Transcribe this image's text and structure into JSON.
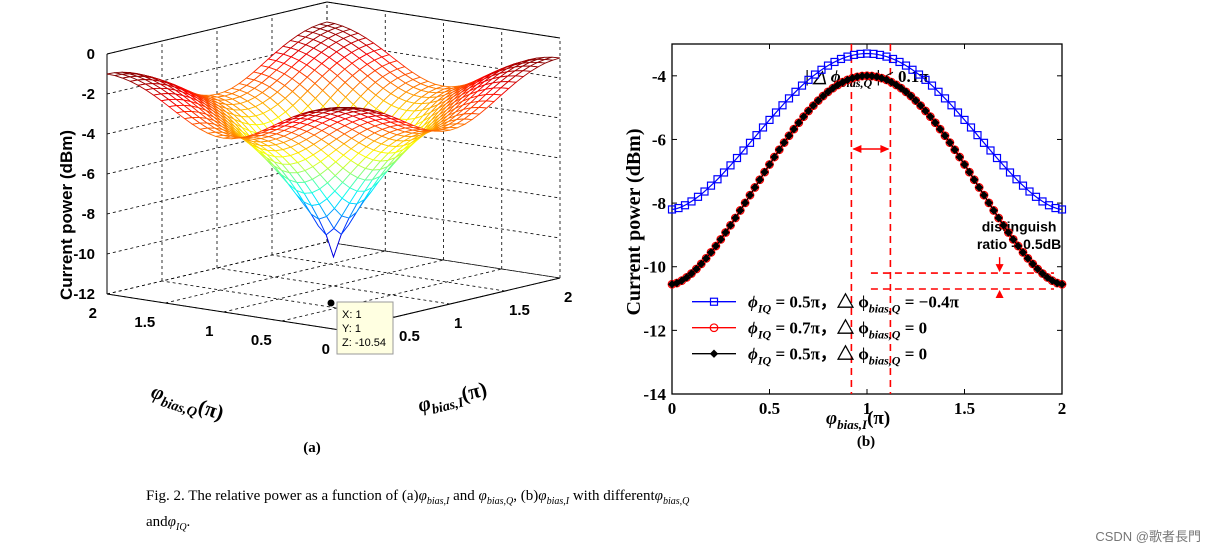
{
  "chart_data": [
    {
      "type": "surface",
      "panel_label": "(a)",
      "zlabel": "Current power (dBm)",
      "xlabel_main": "φ",
      "xlabel_sub": "bias,I",
      "xlabel_unit": "(π)",
      "ylabel_main": "φ",
      "ylabel_sub": "bias,Q",
      "ylabel_unit": "(π)",
      "x_ticks": [
        "0",
        "0.5",
        "1",
        "1.5",
        "2"
      ],
      "y_ticks": [
        "0",
        "0.5",
        "1",
        "1.5",
        "2"
      ],
      "z_ticks": [
        "0",
        "-2",
        "-4",
        "-6",
        "-8",
        "-10",
        "-12"
      ],
      "xlim": [
        0,
        2
      ],
      "ylim": [
        0,
        2
      ],
      "zlim": [
        -12,
        0
      ],
      "surface_min": -10.54,
      "surface_max": -1.0,
      "datatip": {
        "x_line": "X: 1",
        "y_line": "Y: 1",
        "z_line": "Z: -10.54"
      }
    },
    {
      "type": "line",
      "panel_label": "(b)",
      "ylabel": "Current power (dBm)",
      "xlabel_main": "φ",
      "xlabel_sub": "bias,I",
      "xlabel_unit": "(π)",
      "xlim": [
        0,
        2
      ],
      "ylim": [
        -14,
        -3
      ],
      "x_ticks": [
        "0",
        "0.5",
        "1",
        "1.5",
        "2"
      ],
      "y_ticks": [
        "-4",
        "-6",
        "-8",
        "-10",
        "-12",
        "-14"
      ],
      "series": [
        {
          "name_main": "ϕ",
          "name_sub": "IQ",
          "name_rest": " = 0.5π，△ ϕ",
          "name_sub2": "bias,Q",
          "name_end": " = −0.4π",
          "color": "#0000ff",
          "marker": "square",
          "max": -3.3,
          "min": -8.2,
          "center": 1.0
        },
        {
          "name_main": "ϕ",
          "name_sub": "IQ",
          "name_rest": " = 0.7π，△ ϕ",
          "name_sub2": "bias,Q",
          "name_end": " = 0",
          "color": "#ff0000",
          "marker": "circle",
          "max": -4.0,
          "min": -10.55,
          "center": 1.0
        },
        {
          "name_main": "ϕ",
          "name_sub": "IQ",
          "name_rest": " = 0.5π，△ ϕ",
          "name_sub2": "bias,Q",
          "name_end": " = 0",
          "color": "#000000",
          "marker": "diamond",
          "max": -4.0,
          "min": -10.55,
          "center": 1.0
        }
      ],
      "annotations": {
        "range_main": "| △ ϕ",
        "range_sub": "bias,Q",
        "range_end": " | ≤ 0.1π",
        "distinguish_line1": "distinguish",
        "distinguish_line2": "ratio = 0.5dB",
        "dashed_x": [
          0.92,
          1.12
        ],
        "dashed_y": [
          -10.2,
          -10.7
        ]
      }
    }
  ],
  "caption": {
    "prefix": "Fig. 2. The relative power as a function of (a)",
    "phi": "φ",
    "sub_i": "bias,I",
    "and1": " and ",
    "sub_q": "bias,Q",
    "mid": ", (b)",
    "with": " with different",
    "and2": "and",
    "sub_iq": "IQ",
    "end": "."
  },
  "watermark": "CSDN @歌者長門"
}
